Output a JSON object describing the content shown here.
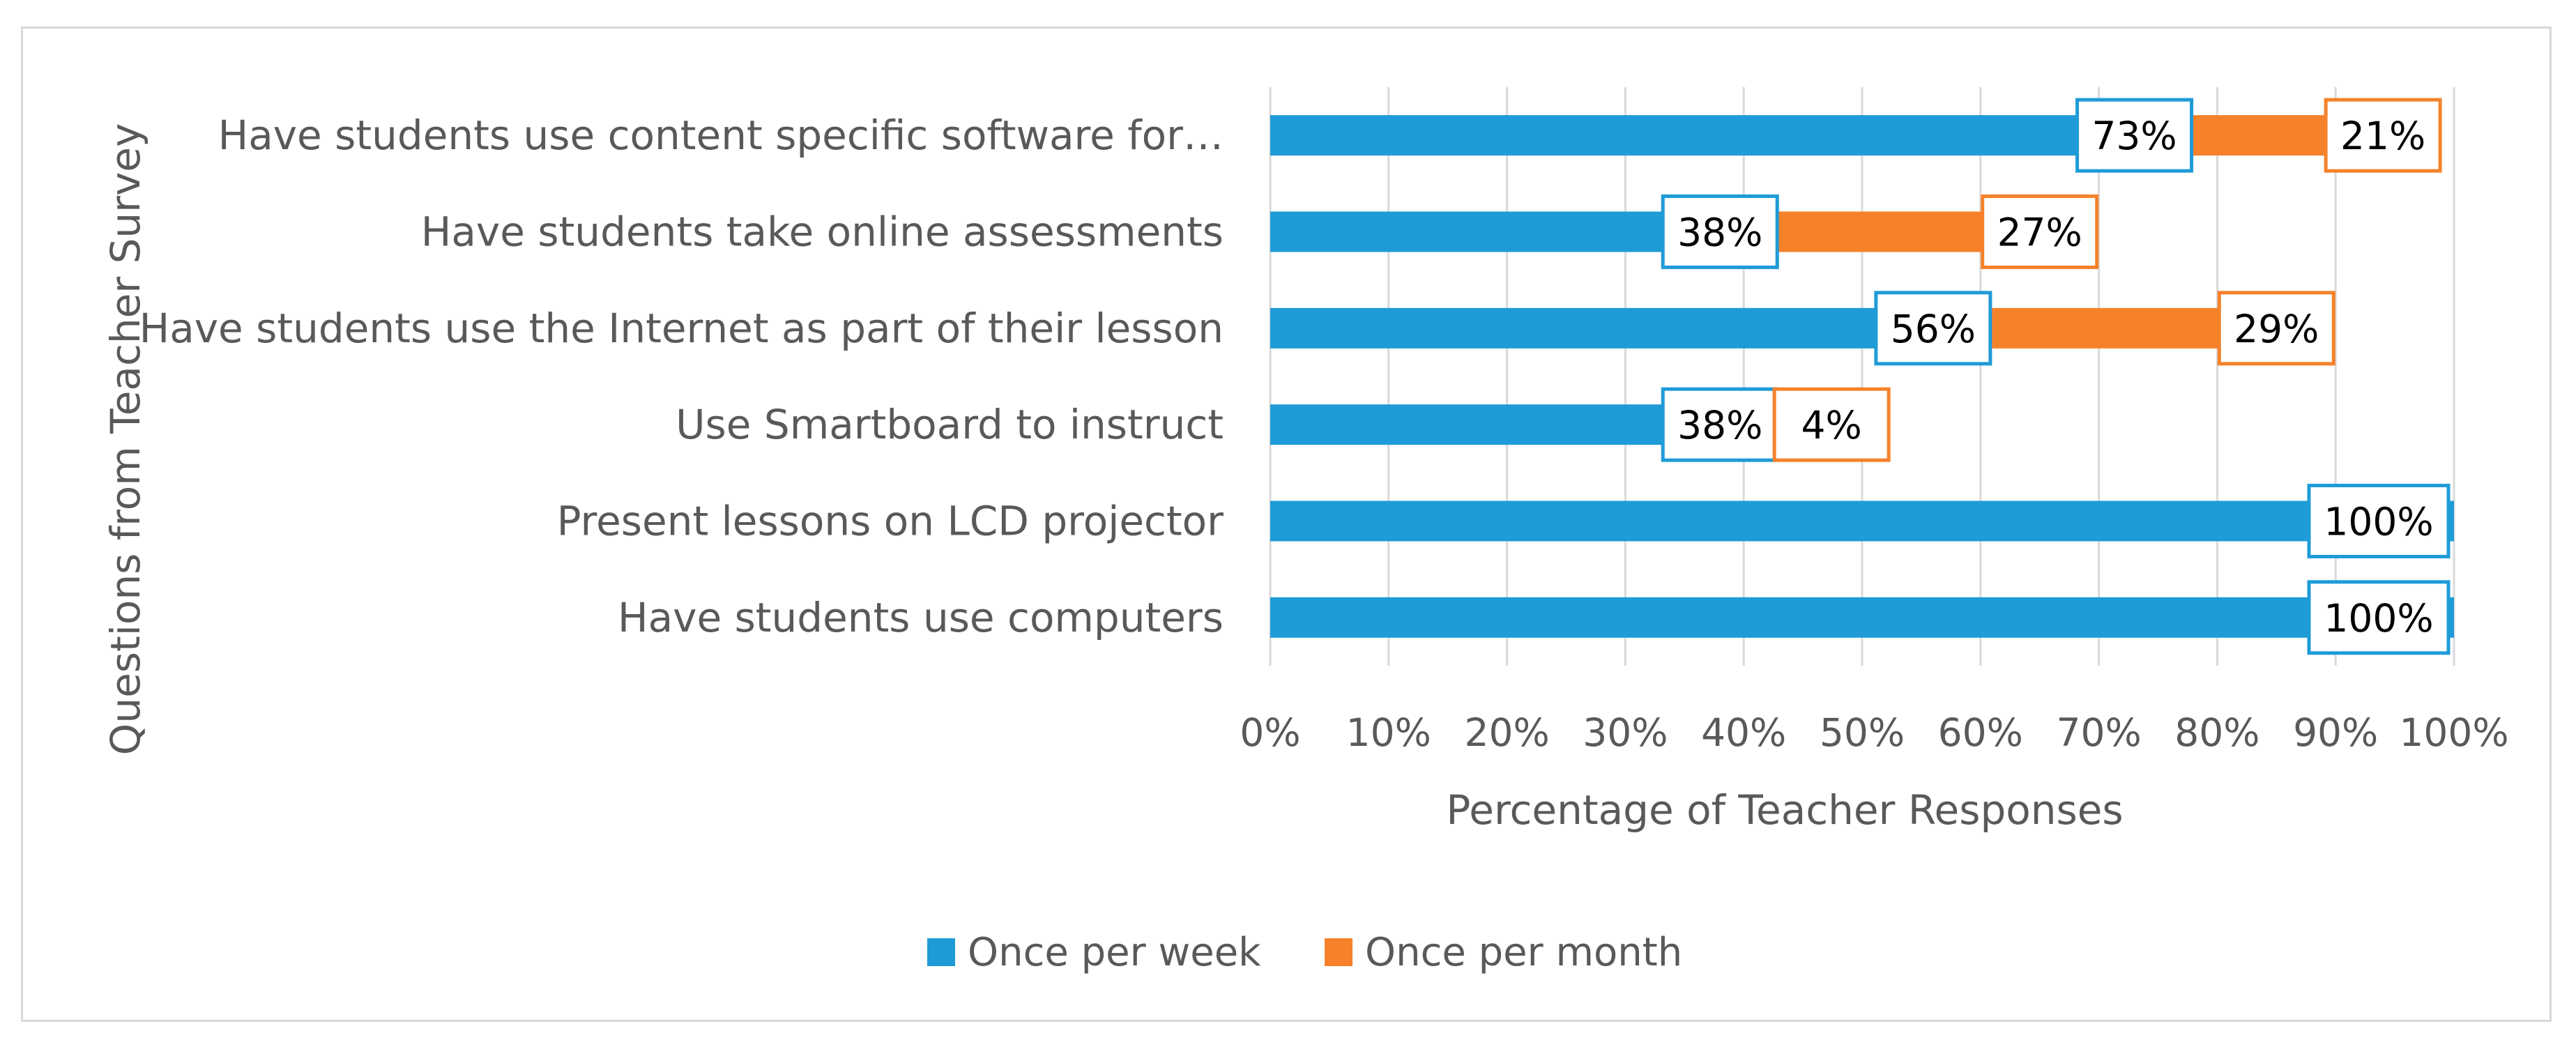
{
  "chart_data": {
    "type": "bar",
    "orientation": "horizontal",
    "stacked": true,
    "categories": [
      "Have students use content specific software for…",
      "Have students take online assessments",
      "Have students use the Internet as part of their lesson",
      "Use Smartboard to instruct",
      "Present lessons on LCD projector",
      "Have students use computers"
    ],
    "series": [
      {
        "name": "Once per week",
        "color": "#1f9bd7",
        "values": [
          73,
          38,
          56,
          38,
          100,
          100
        ]
      },
      {
        "name": "Once per month",
        "color": "#f5822a",
        "values": [
          21,
          27,
          29,
          4,
          0,
          0
        ]
      }
    ],
    "data_labels": [
      [
        "73%",
        "38%",
        "56%",
        "38%",
        "100%",
        "100%"
      ],
      [
        "21%",
        "27%",
        "29%",
        "4%",
        null,
        null
      ]
    ],
    "xlim": [
      0,
      100
    ],
    "x_ticks": [
      0,
      10,
      20,
      30,
      40,
      50,
      60,
      70,
      80,
      90,
      100
    ],
    "x_tick_labels": [
      "0%",
      "10%",
      "20%",
      "30%",
      "40%",
      "50%",
      "60%",
      "70%",
      "80%",
      "90%",
      "100%"
    ],
    "xlabel": "Percentage of Teacher Responses",
    "ylabel": "Questions from Teacher Survey",
    "grid": true,
    "legend_position": "bottom",
    "title": ""
  }
}
